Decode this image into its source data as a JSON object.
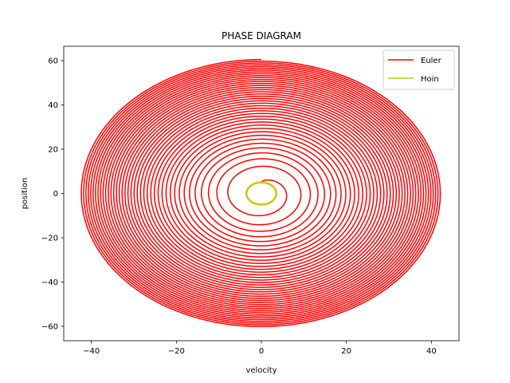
{
  "chart_data": {
    "type": "line",
    "title": "PHASE DIAGRAM",
    "xlabel": "velocity",
    "ylabel": "position",
    "xlim": [
      -46.5,
      46.5
    ],
    "ylim": [
      -66.5,
      66.5
    ],
    "xticks": [
      -40,
      -20,
      0,
      20,
      40
    ],
    "yticks": [
      -60,
      -40,
      -20,
      0,
      20,
      40,
      60
    ],
    "grid": false,
    "legend_position": "top-right",
    "series": [
      {
        "name": "Euler",
        "color": "#ff0000",
        "shape": "outward spiral",
        "center": [
          0,
          0
        ],
        "start_amplitude": {
          "velocity": 3.5,
          "position": 5
        },
        "end_amplitude": {
          "velocity": 42.5,
          "position": 60.5
        },
        "turns": 40,
        "end_point": [
          7.5,
          -60
        ]
      },
      {
        "name": "Hoin",
        "color": "#c8c800",
        "shape": "closed orbit",
        "center": [
          0,
          0
        ],
        "amplitude": {
          "velocity": 3.5,
          "position": 5
        }
      }
    ]
  }
}
